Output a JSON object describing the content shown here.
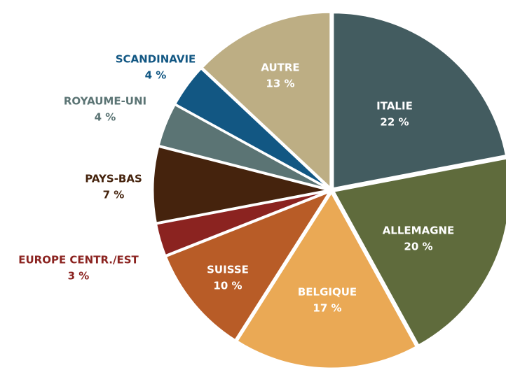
{
  "chart_data": {
    "type": "pie",
    "categories": [
      "ITALIE",
      "ALLEMAGNE",
      "BELGIQUE",
      "SUISSE",
      "EUROPE CENTR./EST",
      "PAYS-BAS",
      "ROYAUME-UNI",
      "SCANDINAVIE",
      "AUTRE"
    ],
    "values": [
      22,
      20,
      17,
      10,
      3,
      7,
      4,
      4,
      13
    ],
    "value_labels": [
      "22 %",
      "20 %",
      "17 %",
      "10 %",
      "3 %",
      "7 %",
      "4 %",
      "4 %",
      "13 %"
    ],
    "colors": [
      "#435c60",
      "#5f6b3c",
      "#eaa955",
      "#b85c27",
      "#8b2320",
      "#45230d",
      "#5b7474",
      "#125783",
      "#bdae84"
    ]
  }
}
